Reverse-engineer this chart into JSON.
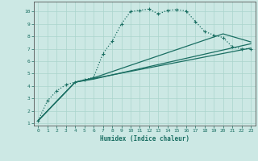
{
  "xlabel": "Humidex (Indice chaleur)",
  "bg_color": "#cce8e4",
  "grid_color": "#aad4cc",
  "line_color": "#1a6e62",
  "xlim": [
    -0.5,
    23.5
  ],
  "ylim": [
    0.8,
    10.8
  ],
  "xticks": [
    0,
    1,
    2,
    3,
    4,
    5,
    6,
    7,
    8,
    9,
    10,
    11,
    12,
    13,
    14,
    15,
    16,
    17,
    18,
    19,
    20,
    21,
    22,
    23
  ],
  "yticks": [
    1,
    2,
    3,
    4,
    5,
    6,
    7,
    8,
    9,
    10
  ],
  "series": [
    {
      "x": [
        0,
        1,
        2,
        3,
        4,
        5,
        6,
        7,
        8,
        9,
        10,
        11,
        12,
        13,
        14,
        15,
        16,
        17,
        18,
        19,
        20,
        21,
        22,
        23
      ],
      "y": [
        1.2,
        2.8,
        3.6,
        4.1,
        4.3,
        4.5,
        4.7,
        6.6,
        7.6,
        9.0,
        10.0,
        10.1,
        10.2,
        9.8,
        10.1,
        10.15,
        10.05,
        9.2,
        8.4,
        8.1,
        7.9,
        7.15,
        7.0,
        7.0
      ],
      "marker": true,
      "dotted": true
    },
    {
      "x": [
        0,
        4,
        6,
        23
      ],
      "y": [
        1.2,
        4.3,
        4.6,
        7.05
      ],
      "marker": false,
      "dotted": false
    },
    {
      "x": [
        0,
        4,
        6,
        23
      ],
      "y": [
        1.2,
        4.3,
        4.55,
        7.4
      ],
      "marker": false,
      "dotted": false
    },
    {
      "x": [
        0,
        4,
        6,
        20,
        23
      ],
      "y": [
        1.2,
        4.3,
        4.65,
        8.2,
        7.55
      ],
      "marker": false,
      "dotted": false
    }
  ]
}
